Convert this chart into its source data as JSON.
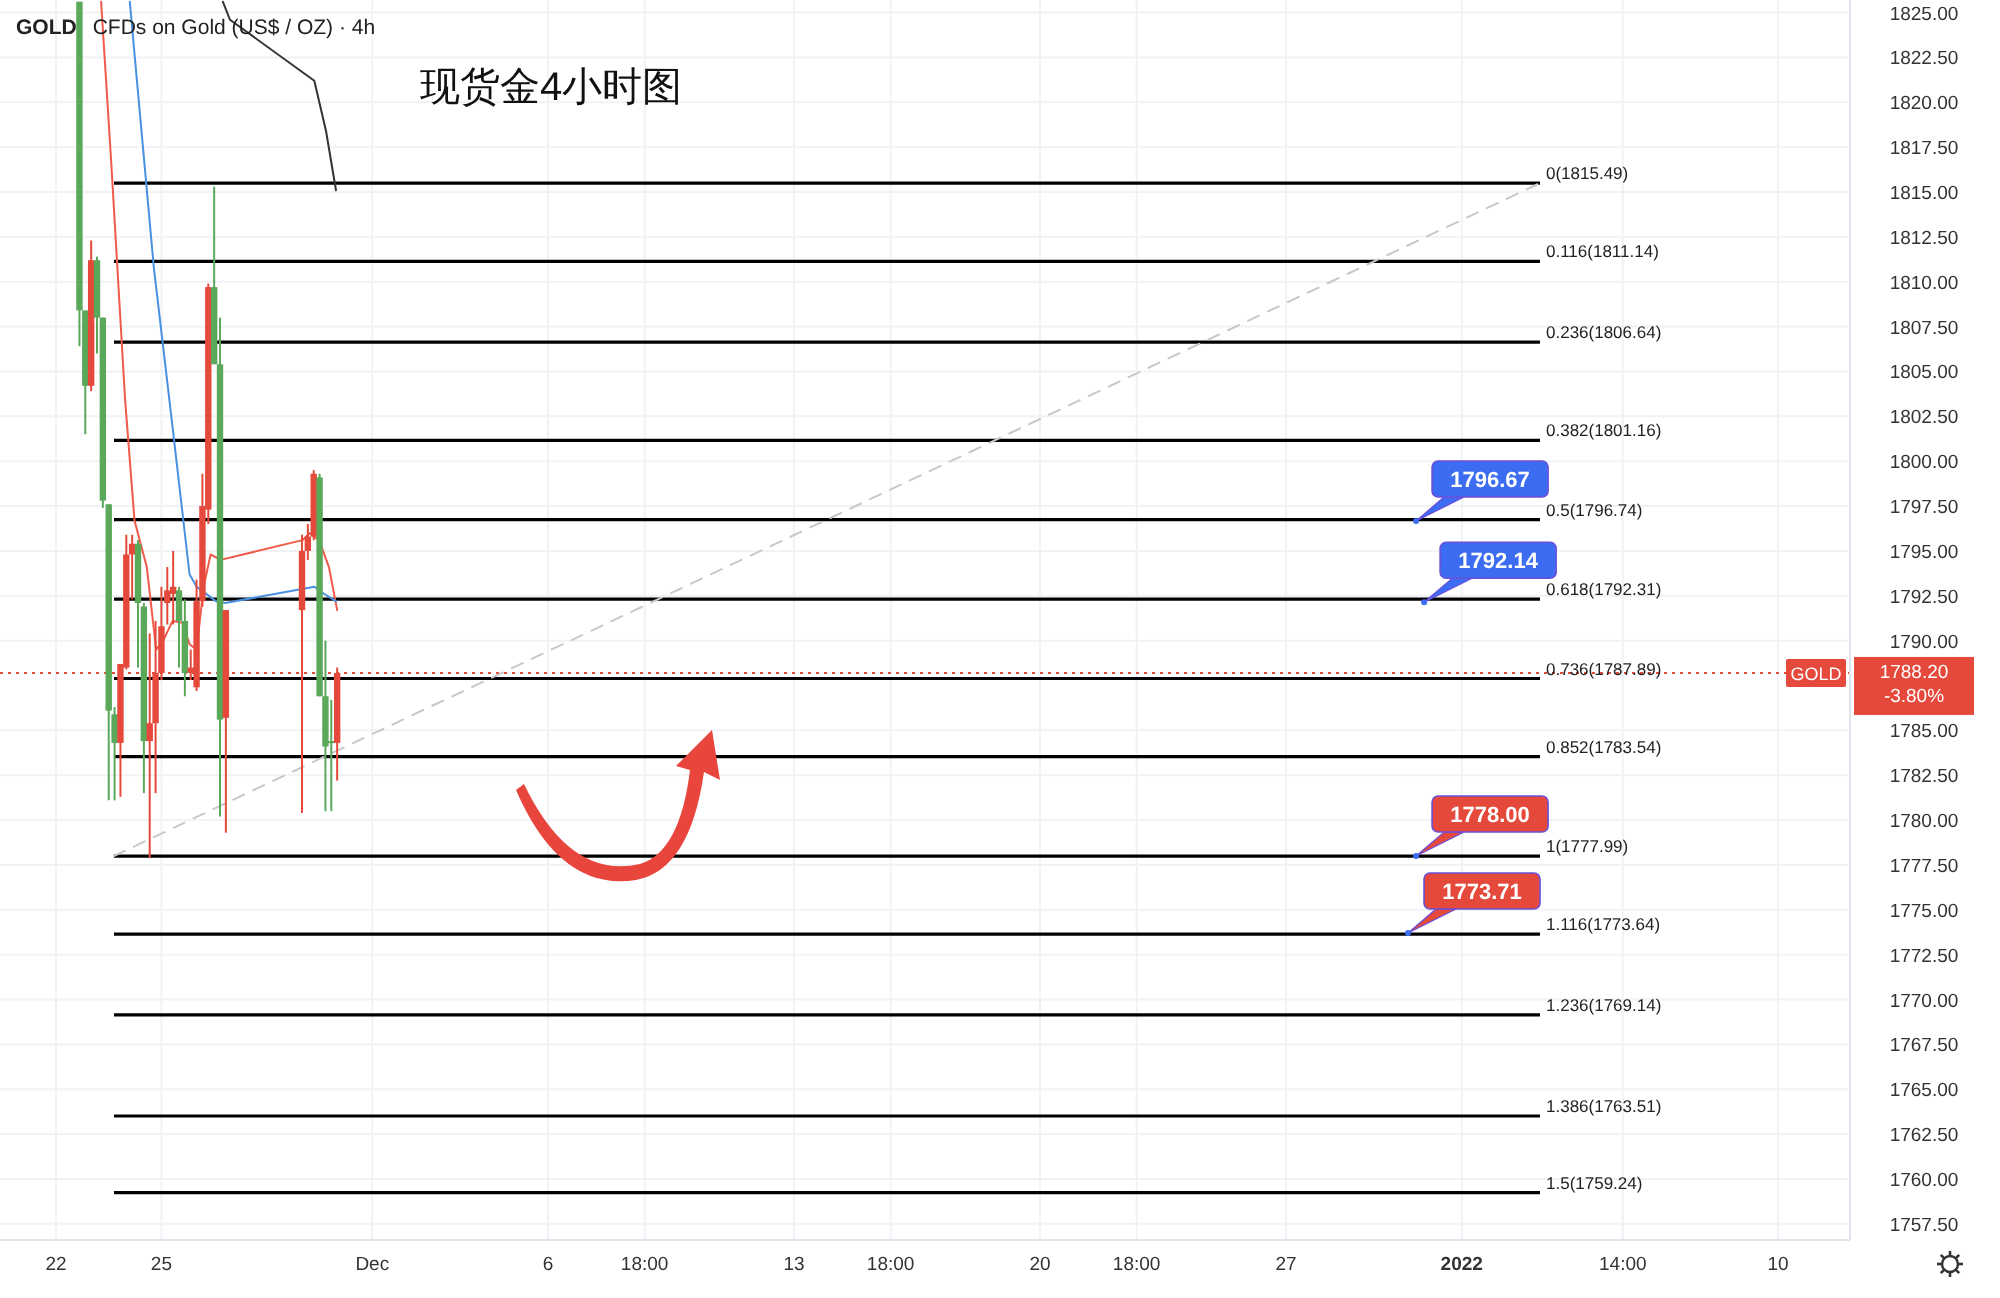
{
  "chart_data": {
    "type": "candlestick",
    "title": "GOLD",
    "subtitle": "CFDs on Gold (US$ / OZ) · 4h",
    "xlim": [
      "2021-11-20T09:45",
      "2022-01-12T01:10"
    ],
    "xticks": [
      {
        "value": "2021-11-22",
        "label": "22"
      },
      {
        "value": "2021-11-25",
        "label": "25"
      },
      {
        "value": "2021-12-01",
        "label": "Dec"
      },
      {
        "value": "2021-12-06",
        "label": "6"
      },
      {
        "value": "2021-12-08T18:00",
        "label": "18:00"
      },
      {
        "value": "2021-12-13",
        "label": "13"
      },
      {
        "value": "2021-12-15T18:00",
        "label": "18:00"
      },
      {
        "value": "2021-12-20",
        "label": "20"
      },
      {
        "value": "2021-12-22T18:00",
        "label": "18:00"
      },
      {
        "value": "2021-12-27",
        "label": "27"
      },
      {
        "value": "2022-01-01",
        "label": "2022"
      },
      {
        "value": "2022-01-05T14:00",
        "label": "14:00"
      },
      {
        "value": "2022-01-10",
        "label": "10"
      }
    ],
    "ylim": [
      1756.6,
      1825.7
    ],
    "yticks": [
      {
        "value": 1757.5,
        "label": "1757.50"
      },
      {
        "value": 1760,
        "label": "1760.00"
      },
      {
        "value": 1762.5,
        "label": "1762.50"
      },
      {
        "value": 1765,
        "label": "1765.00"
      },
      {
        "value": 1767.5,
        "label": "1767.50"
      },
      {
        "value": 1770,
        "label": "1770.00"
      },
      {
        "value": 1772.5,
        "label": "1772.50"
      },
      {
        "value": 1775,
        "label": "1775.00"
      },
      {
        "value": 1777.5,
        "label": "1777.50"
      },
      {
        "value": 1780,
        "label": "1780.00"
      },
      {
        "value": 1782.5,
        "label": "1782.50"
      },
      {
        "value": 1785,
        "label": "1785.00"
      },
      {
        "value": 1790,
        "label": "1790.00"
      },
      {
        "value": 1792.5,
        "label": "1792.50"
      },
      {
        "value": 1795,
        "label": "1795.00"
      },
      {
        "value": 1797.5,
        "label": "1797.50"
      },
      {
        "value": 1800,
        "label": "1800.00"
      },
      {
        "value": 1802.5,
        "label": "1802.50"
      },
      {
        "value": 1805,
        "label": "1805.00"
      },
      {
        "value": 1807.5,
        "label": "1807.50"
      },
      {
        "value": 1810,
        "label": "1810.00"
      },
      {
        "value": 1812.5,
        "label": "1812.50"
      },
      {
        "value": 1815,
        "label": "1815.00"
      },
      {
        "value": 1817.5,
        "label": "1817.50"
      },
      {
        "value": 1820,
        "label": "1820.00"
      },
      {
        "value": 1822.5,
        "label": "1822.50"
      },
      {
        "value": 1825,
        "label": "1825.00"
      }
    ],
    "grid": true,
    "series": [
      {
        "type": "line",
        "color": "#f05a4a",
        "x": [
          "2021-11-23T06:48",
          "2021-11-23T13:36",
          "2021-11-23T23:12",
          "2021-11-24T05:36",
          "2021-11-24T14:00",
          "2021-11-24T20:24",
          "2021-11-25T01:12",
          "2021-11-25T07:36",
          "2021-11-25T14:24",
          "2021-11-25T19:12",
          "2021-11-26T00:00",
          "2021-11-26T04:48",
          "2021-11-26T09:36",
          "2021-11-26T16:24",
          "2021-11-29T00:24",
          "2021-11-29T05:12",
          "2021-11-29T11:36",
          "2021-11-29T18:24",
          "2021-11-30T00:00"
        ],
        "values": [
          1825.6,
          1816.8,
          1803.4,
          1796.7,
          1794.1,
          1789.5,
          1790.0,
          1791.1,
          1791.0,
          1789.8,
          1789.5,
          1793.0,
          1794.8,
          1794.5,
          1795.6,
          1796.0,
          1795.6,
          1794.1,
          1791.7
        ]
      },
      {
        "type": "line",
        "color": "#4a90e2",
        "x": [
          "2021-11-24T02:24",
          "2021-11-24T18:48",
          "2021-11-25T07:36",
          "2021-11-25T19:12",
          "2021-11-26T00:00",
          "2021-11-26T13:12",
          "2021-11-26T19:36",
          "2021-11-29T08:24",
          "2021-11-29T15:12",
          "2021-11-29T23:12"
        ],
        "values": [
          1825.6,
          1810.8,
          1801.9,
          1793.7,
          1793.0,
          1792.2,
          1792.1,
          1793.0,
          1792.6,
          1792.2
        ]
      },
      {
        "type": "line",
        "color": "#333333",
        "x": [
          "2021-11-26T18:00",
          "2021-11-26T22:48",
          "2021-11-29T08:24",
          "2021-11-29T16:24",
          "2021-11-29T23:12"
        ],
        "values": [
          1825.6,
          1824.6,
          1821.2,
          1818.4,
          1815.1
        ]
      },
      {
        "type": "line",
        "color": "#c8c8c8",
        "line_style": "dashed",
        "x": [
          "2021-11-23T15:35",
          "2022-01-03T05:30"
        ],
        "values": [
          1778.0,
          1815.5
        ]
      },
      {
        "x": [
          "2021-11-22T16:00",
          "2021-11-22T20:00",
          "2021-11-23T00:00",
          "2021-11-23T04:00",
          "2021-11-23T08:00",
          "2021-11-23T12:00",
          "2021-11-23T16:00",
          "2021-11-23T20:00",
          "2021-11-24T00:00",
          "2021-11-24T04:00",
          "2021-11-24T08:00",
          "2021-11-24T12:00",
          "2021-11-24T16:00",
          "2021-11-24T20:00",
          "2021-11-25T00:00",
          "2021-11-25T04:00",
          "2021-11-25T08:00",
          "2021-11-25T12:00",
          "2021-11-25T16:00",
          "2021-11-25T20:00",
          "2021-11-26T00:00",
          "2021-11-26T04:00",
          "2021-11-26T08:00",
          "2021-11-26T12:00",
          "2021-11-26T16:00",
          "2021-11-26T20:00",
          "2021-11-29T00:00",
          "2021-11-29T04:00",
          "2021-11-29T08:00",
          "2021-11-29T12:00",
          "2021-11-29T16:00",
          "2021-11-29T20:00",
          "2021-11-30T00:00"
        ],
        "colors": [
          "#5aa85a",
          "#5aa85a",
          "#e5493b",
          "#5aa85a",
          "#5aa85a",
          "#5aa85a",
          "#5aa85a",
          "#e5493b",
          "#e5493b",
          "#e5493b",
          "#5aa85a",
          "#5aa85a",
          "#e5493b",
          "#e5493b",
          "#e5493b",
          "#e5493b",
          "#e5493b",
          "#5aa85a",
          "#5aa85a",
          "#e5493b",
          "#e5493b",
          "#e5493b",
          "#e5493b",
          "#5aa85a",
          "#5aa85a",
          "#e5493b",
          "#e5493b",
          "#e5493b",
          "#e5493b",
          "#5aa85a",
          "#5aa85a",
          "#5aa85a",
          "#e5493b"
        ],
        "ohlc": [
          [
            1825.6,
            1825.6,
            1806.4,
            1808.4
          ],
          [
            1808.4,
            1808.4,
            1801.5,
            1804.2
          ],
          [
            1804.2,
            1812.3,
            1803.9,
            1811.2
          ],
          [
            1811.2,
            1811.4,
            1806.0,
            1808.0
          ],
          [
            1808.0,
            1808.0,
            1797.4,
            1797.8
          ],
          [
            1797.6,
            1797.6,
            1781.1,
            1786.1
          ],
          [
            1785.9,
            1786.3,
            1781.1,
            1784.3
          ],
          [
            1784.3,
            1788.7,
            1781.3,
            1788.7
          ],
          [
            1788.5,
            1795.9,
            1788.4,
            1794.8
          ],
          [
            1794.8,
            1795.9,
            1792.3,
            1795.4
          ],
          [
            1795.4,
            1795.6,
            1788.5,
            1792.1
          ],
          [
            1791.9,
            1792.1,
            1781.5,
            1784.4
          ],
          [
            1784.4,
            1790.4,
            1777.9,
            1785.4
          ],
          [
            1785.4,
            1791.1,
            1781.5,
            1788.2
          ],
          [
            1788.2,
            1793.0,
            1787.8,
            1790.8
          ],
          [
            1792.1,
            1794.1,
            1790.9,
            1792.8
          ],
          [
            1792.6,
            1795.0,
            1790.9,
            1793.0
          ],
          [
            1792.8,
            1793.0,
            1788.5,
            1791.1
          ],
          [
            1791.1,
            1792.3,
            1786.9,
            1788.2
          ],
          [
            1788.2,
            1789.5,
            1787.8,
            1788.5
          ],
          [
            1787.4,
            1793.4,
            1787.2,
            1792.2
          ],
          [
            1792.2,
            1799.3,
            1791.9,
            1797.5
          ],
          [
            1797.3,
            1809.9,
            1796.5,
            1809.7
          ],
          [
            1809.7,
            1815.3,
            1805.4,
            1805.4
          ],
          [
            1805.4,
            1808.0,
            1780.2,
            1785.6
          ],
          [
            1785.7,
            1791.7,
            1779.3,
            1791.7
          ],
          [
            1791.7,
            1795.9,
            1780.4,
            1795.0
          ],
          [
            1795.0,
            1796.5,
            1794.5,
            1795.8
          ],
          [
            1795.8,
            1799.5,
            1795.6,
            1799.3
          ],
          [
            1799.1,
            1799.3,
            1786.9,
            1786.9
          ],
          [
            1786.9,
            1790.0,
            1780.5,
            1784.1
          ],
          [
            1784.4,
            1786.7,
            1780.5,
            1784.3
          ],
          [
            1784.3,
            1788.5,
            1782.2,
            1788.2
          ]
        ]
      }
    ],
    "ref_lines": [
      {
        "axis": "y",
        "value": 1815.49,
        "label": "0(1815.49)"
      },
      {
        "axis": "y",
        "value": 1811.14,
        "label": "0.116(1811.14)"
      },
      {
        "axis": "y",
        "value": 1806.64,
        "label": "0.236(1806.64)"
      },
      {
        "axis": "y",
        "value": 1801.16,
        "label": "0.382(1801.16)"
      },
      {
        "axis": "y",
        "value": 1796.74,
        "label": "0.5(1796.74)"
      },
      {
        "axis": "y",
        "value": 1792.31,
        "label": "0.618(1792.31)"
      },
      {
        "axis": "y",
        "value": 1787.89,
        "label": "0.736(1787.89)"
      },
      {
        "axis": "y",
        "value": 1783.54,
        "label": "0.852(1783.54)"
      },
      {
        "axis": "y",
        "value": 1777.99,
        "label": "1(1777.99)"
      },
      {
        "axis": "y",
        "value": 1773.64,
        "label": "1.116(1773.64)"
      },
      {
        "axis": "y",
        "value": 1769.14,
        "label": "1.236(1769.14)"
      },
      {
        "axis": "y",
        "value": 1763.51,
        "label": "1.386(1763.51)"
      },
      {
        "axis": "y",
        "value": 1759.24,
        "label": "1.5(1759.24)"
      },
      {
        "axis": "y",
        "value": 1788.2,
        "label": "GOLD",
        "color": "#e5493b",
        "line_style": "dotted"
      }
    ],
    "annotations": [
      "现货金4小时图",
      {
        "text": "1796.67",
        "x": "2021-12-30T16:50",
        "y": 1796.67
      },
      {
        "text": "1792.14",
        "x": "2021-12-30T22:20",
        "y": 1792.14
      },
      {
        "text": "1778.00",
        "x": "2021-12-30T16:50",
        "y": 1778.0
      },
      {
        "text": "1773.71",
        "x": "2021-12-30T11:20",
        "y": 1773.71
      },
      "1788.20",
      "-3.80%"
    ]
  }
}
